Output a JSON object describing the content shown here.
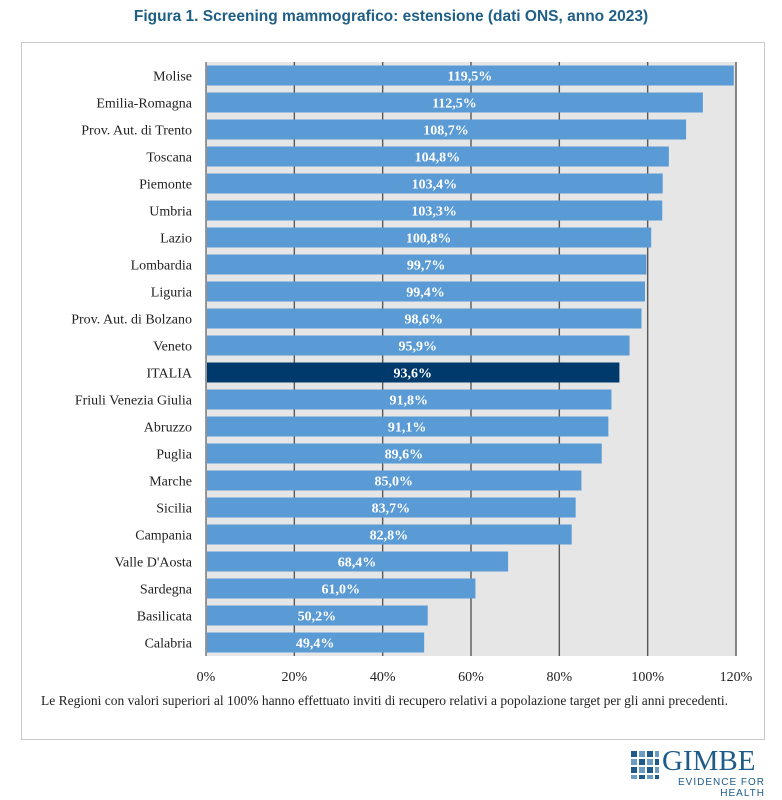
{
  "title": "Figura 1. Screening mammografico: estensione (dati ONS, anno 2023)",
  "note": "Le Regioni con valori superiori al 100% hanno effettuato inviti di recupero relativi a popolazione target per gli anni precedenti.",
  "logo": {
    "name": "GIMBE",
    "tagline": "EVIDENCE FOR HEALTH"
  },
  "colors": {
    "bar": "#5b9bd5",
    "highlight": "#003a6c",
    "plot_bg": "#e6e6e6",
    "grid": "#595959",
    "title": "#1f5f86"
  },
  "chart_data": {
    "type": "bar",
    "orientation": "horizontal",
    "categories": [
      "Molise",
      "Emilia-Romagna",
      "Prov. Aut. di Trento",
      "Toscana",
      "Piemonte",
      "Umbria",
      "Lazio",
      "Lombardia",
      "Liguria",
      "Prov. Aut. di Bolzano",
      "Veneto",
      "ITALIA",
      "Friuli Venezia Giulia",
      "Abruzzo",
      "Puglia",
      "Marche",
      "Sicilia",
      "Campania",
      "Valle D'Aosta",
      "Sardegna",
      "Basilicata",
      "Calabria"
    ],
    "values": [
      119.5,
      112.5,
      108.7,
      104.8,
      103.4,
      103.3,
      100.8,
      99.7,
      99.4,
      98.6,
      95.9,
      93.6,
      91.8,
      91.1,
      89.6,
      85.0,
      83.7,
      82.8,
      68.4,
      61.0,
      50.2,
      49.4
    ],
    "labels": [
      "119,5%",
      "112,5%",
      "108,7%",
      "104,8%",
      "103,4%",
      "103,3%",
      "100,8%",
      "99,7%",
      "99,4%",
      "98,6%",
      "95,9%",
      "93,6%",
      "91,8%",
      "91,1%",
      "89,6%",
      "85,0%",
      "83,7%",
      "82,8%",
      "68,4%",
      "61,0%",
      "50,2%",
      "49,4%"
    ],
    "highlight": "ITALIA",
    "xlim": [
      0,
      120
    ],
    "xticks": [
      "0%",
      "20%",
      "40%",
      "60%",
      "80%",
      "100%",
      "120%"
    ],
    "grid": true
  }
}
